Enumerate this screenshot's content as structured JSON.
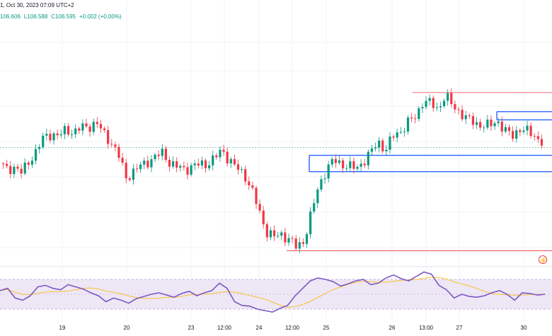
{
  "header": {
    "title_fragment": "1, Oct 30, 2023 07:09 UTC+2",
    "ohlc": {
      "open": "106.606",
      "low": "L106.588",
      "close": "C106.595",
      "change": "+0.002 (+0.00%)"
    }
  },
  "colors": {
    "bull": "#089981",
    "bear": "#f23645",
    "support_line": "#2962ff",
    "resistance_line": "#f23645",
    "rsi_line": "#7e57c2",
    "rsi_ma": "#fbc02d",
    "rsi_band": "#ede7f6",
    "grid": "#f0f3fa",
    "text": "#131722"
  },
  "chart_data": [
    {
      "type": "candlestick",
      "description_series": "price",
      "x_labels": [
        "19",
        "20",
        "23",
        "12:00",
        "24",
        "12:00",
        "25",
        "26",
        "13:00",
        "27",
        "30"
      ],
      "last_price": 106.595,
      "price_path": [
        106.3,
        106.18,
        106.25,
        106.12,
        106.35,
        106.55,
        106.78,
        106.85,
        106.8,
        106.92,
        106.88,
        106.95,
        106.98,
        107.05,
        106.85,
        106.7,
        106.45,
        106.05,
        106.15,
        106.25,
        106.35,
        106.42,
        106.5,
        106.3,
        106.22,
        106.2,
        106.25,
        106.28,
        106.3,
        106.4,
        106.55,
        106.35,
        106.2,
        106.1,
        105.8,
        105.4,
        105.05,
        104.95,
        105.0,
        104.92,
        104.75,
        104.9,
        105.4,
        105.9,
        106.2,
        106.35,
        106.3,
        106.25,
        106.2,
        106.35,
        106.5,
        106.7,
        106.55,
        106.8,
        106.9,
        107.05,
        107.15,
        107.45,
        107.4,
        107.3,
        107.55,
        107.35,
        107.25,
        107.1,
        107.05,
        107.0,
        106.98,
        107.1,
        106.9,
        106.8,
        106.95,
        106.88,
        106.82,
        106.7
      ],
      "levels": [
        {
          "name": "resistance-top",
          "value": 107.6,
          "color": "red"
        },
        {
          "name": "resistance-upper",
          "value": 107.25,
          "color": "blue"
        },
        {
          "name": "resistance-mid",
          "value": 107.1,
          "color": "blue"
        },
        {
          "name": "support-upper",
          "value": 106.45,
          "color": "blue"
        },
        {
          "name": "support-lower",
          "value": 106.15,
          "color": "blue"
        },
        {
          "name": "low-level",
          "value": 104.7,
          "color": "red"
        }
      ]
    },
    {
      "type": "line",
      "title": "RSI",
      "ylim": [
        0,
        100
      ],
      "band": [
        30,
        70
      ],
      "rsi_values": [
        55,
        58,
        45,
        42,
        48,
        60,
        62,
        58,
        56,
        63,
        60,
        57,
        52,
        48,
        40,
        45,
        42,
        38,
        44,
        47,
        50,
        52,
        49,
        46,
        51,
        54,
        48,
        52,
        55,
        65,
        58,
        40,
        35,
        34,
        30,
        28,
        26,
        31,
        35,
        48,
        58,
        68,
        72,
        70,
        67,
        61,
        64,
        68,
        70,
        63,
        65,
        72,
        76,
        71,
        68,
        74,
        80,
        77,
        62,
        56,
        45,
        50,
        47,
        46,
        48,
        52,
        55,
        50,
        42,
        52,
        51,
        49,
        50
      ]
    }
  ]
}
